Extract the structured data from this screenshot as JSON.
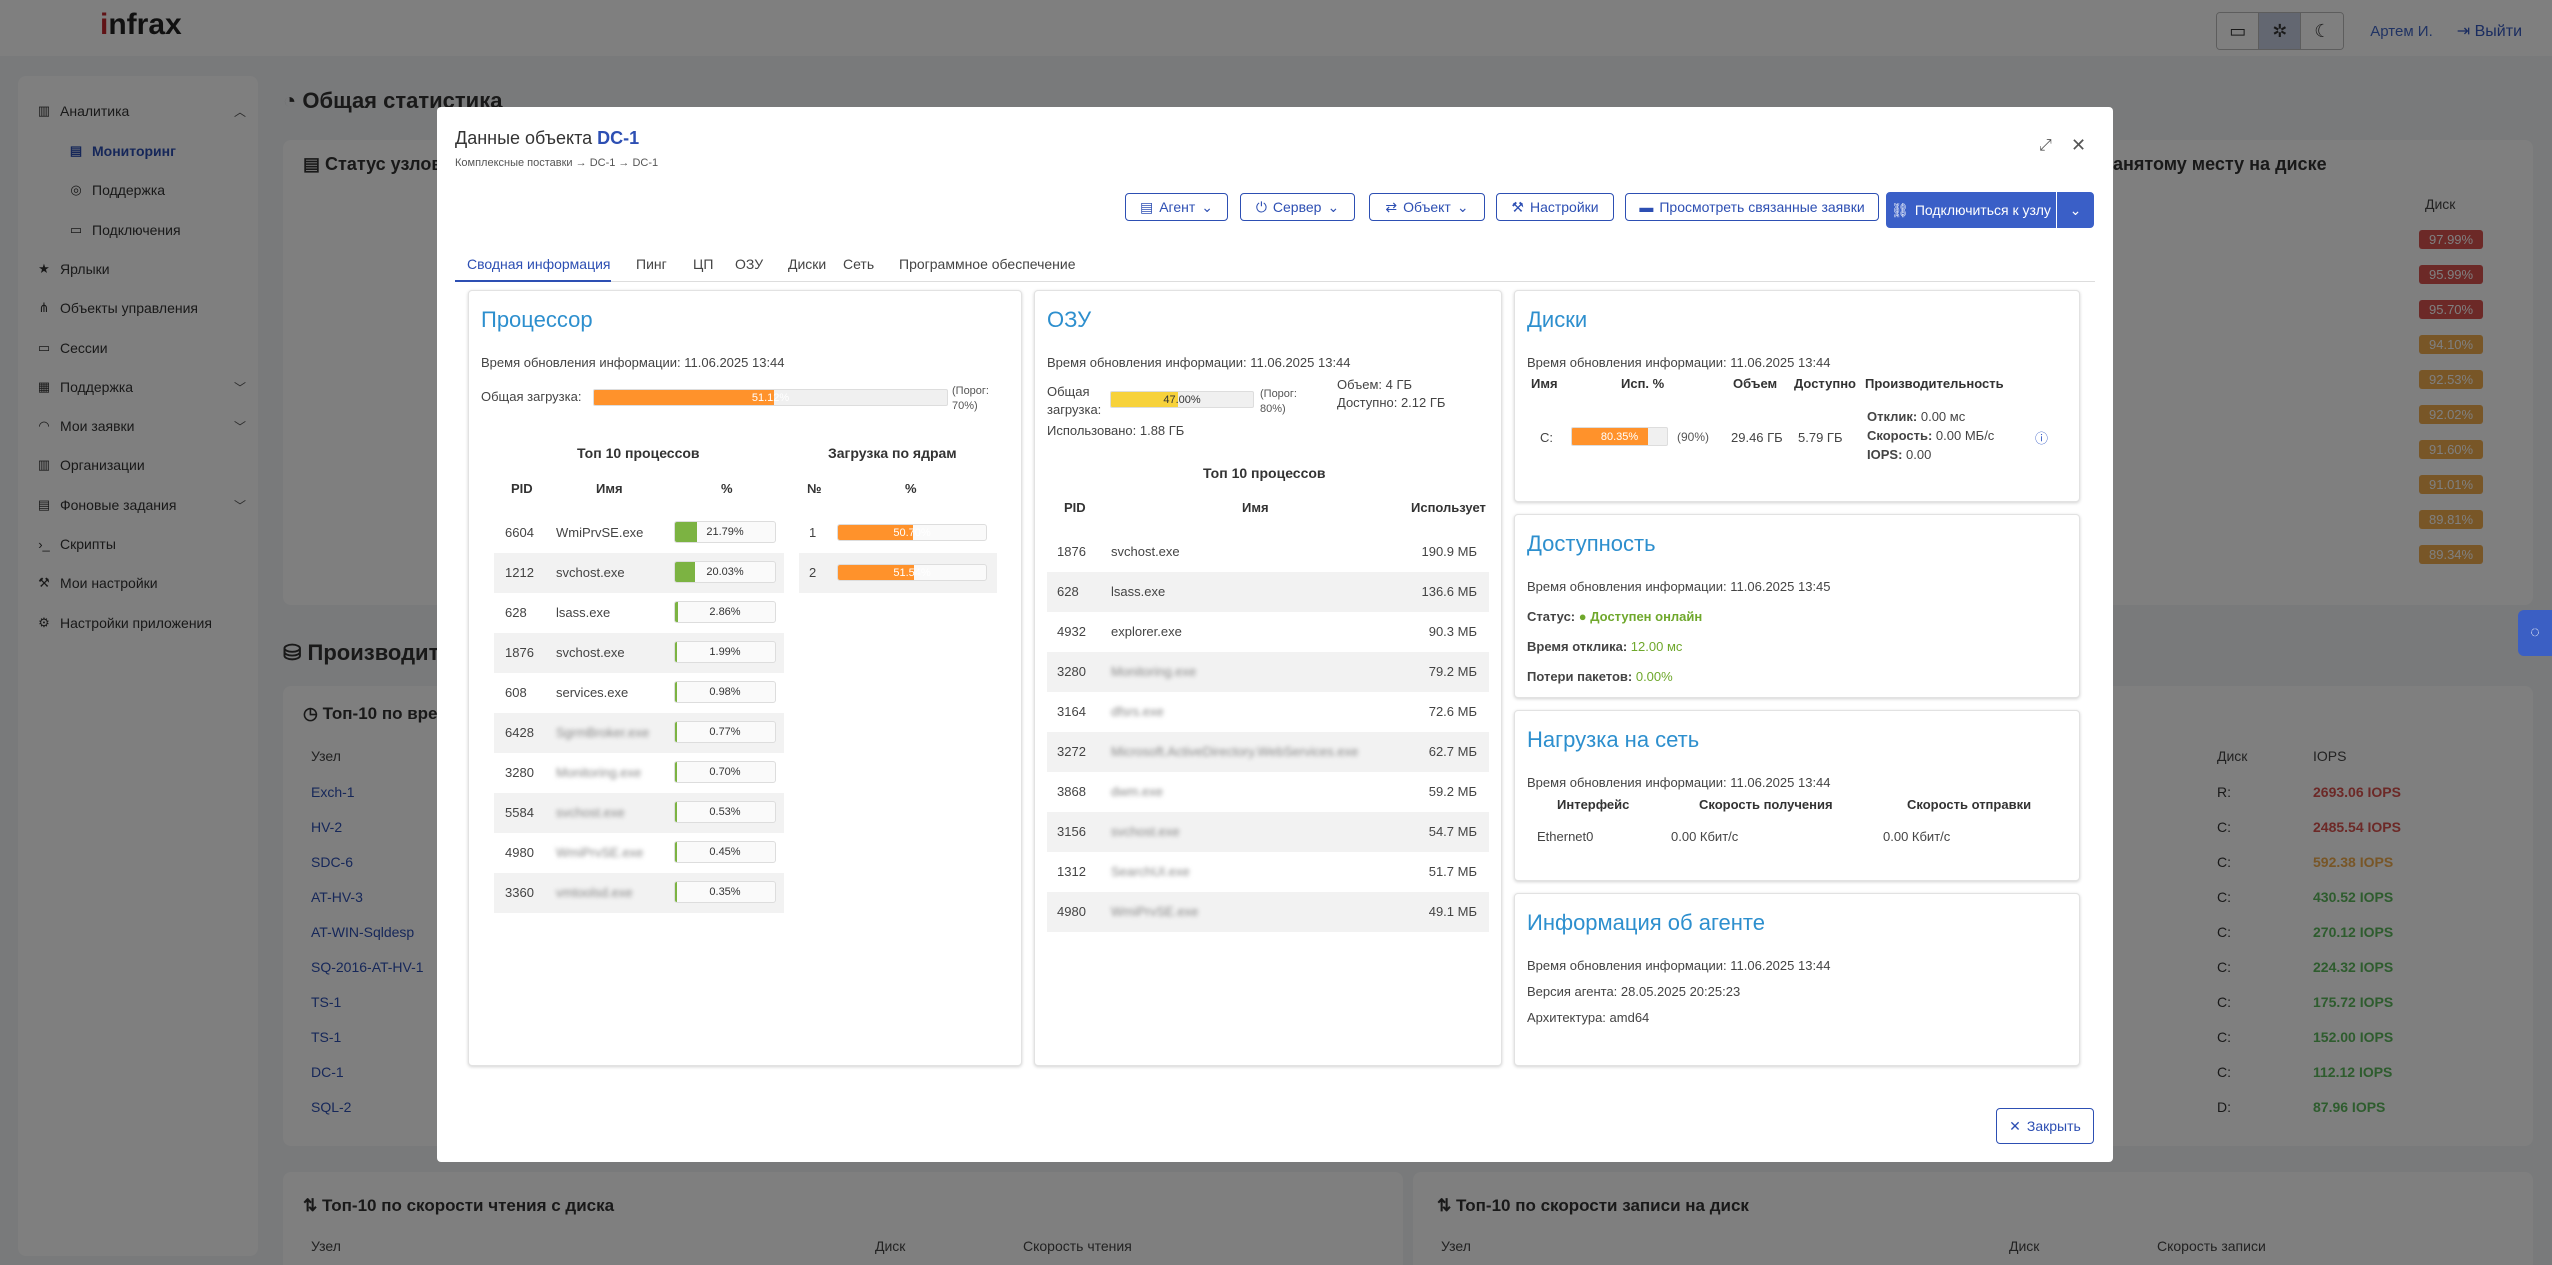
{
  "app": {
    "logo": "infrax",
    "user": "Артем И.",
    "logout": "Выйти",
    "theme_buttons": [
      "desktop-icon",
      "gear-icon",
      "moon-icon"
    ]
  },
  "sidebar": {
    "items": [
      {
        "label": "Аналитика",
        "icon": "chart-icon"
      },
      {
        "label": "Мониторинг",
        "icon": "monitor-icon"
      },
      {
        "label": "Поддержка",
        "icon": "support-icon"
      },
      {
        "label": "Подключения",
        "icon": "screen-icon"
      },
      {
        "label": "Ярлыки",
        "icon": "star-icon"
      },
      {
        "label": "Объекты управления",
        "icon": "sitemap-icon"
      },
      {
        "label": "Сессии",
        "icon": "desktop-icon"
      },
      {
        "label": "Поддержка",
        "icon": "ticket-icon"
      },
      {
        "label": "Мои заявки",
        "icon": "headset-icon"
      },
      {
        "label": "Организации",
        "icon": "building-icon"
      },
      {
        "label": "Фоновые задания",
        "icon": "tasks-icon"
      },
      {
        "label": "Скрипты",
        "icon": "terminal-icon"
      },
      {
        "label": "Мои настройки",
        "icon": "wrench-icon"
      },
      {
        "label": "Настройки приложения",
        "icon": "cogs-icon"
      }
    ]
  },
  "background": {
    "page_title": "Общая статистика",
    "status_title": "Статус узлов",
    "disk_title": "анятому месту на диске",
    "disk_col": "Диск",
    "disk_values": [
      "97.99%",
      "95.99%",
      "95.70%",
      "94.10%",
      "92.53%",
      "92.02%",
      "91.60%",
      "91.01%",
      "89.81%",
      "89.34%"
    ],
    "perf_title": "Производите",
    "top10_title": "Топ-10 по вре",
    "col_node": "Узел",
    "col_disk": "Диск",
    "col_iops": "IOPS",
    "nodes": [
      "Exch-1",
      "HV-2",
      "SDC-6",
      "AT-HV-3",
      "AT-WIN-Sqldesp",
      "SQ-2016-AT-HV-1",
      "TS-1",
      "TS-1",
      "DC-1",
      "SQL-2"
    ],
    "disks": [
      "R:",
      "C:",
      "C:",
      "C:",
      "C:",
      "C:",
      "C:",
      "C:",
      "C:",
      "D:"
    ],
    "iops": [
      "2693.06 IOPS",
      "2485.54 IOPS",
      "592.38 IOPS",
      "430.52 IOPS",
      "270.12 IOPS",
      "224.32 IOPS",
      "175.72 IOPS",
      "152.00 IOPS",
      "112.12 IOPS",
      "87.96 IOPS"
    ],
    "read_title": "Топ-10 по скорости чтения с диска",
    "write_title": "Топ-10 по скорости записи на диск",
    "read_speed_col": "Скорость чтения",
    "write_speed_col": "Скорость записи"
  },
  "modal": {
    "title_prefix": "Данные объекта",
    "object_name": "DC-1",
    "breadcrumb": "Комплексные поставки → DC-1 → DC-1",
    "toolbar": {
      "agent": "Агент",
      "server": "Сервер",
      "object": "Объект",
      "settings": "Настройки",
      "view_tickets": "Просмотреть связанные заявки",
      "connect": "Подключиться к узлу"
    },
    "tabs": [
      "Сводная информация",
      "Пинг",
      "ЦП",
      "ОЗУ",
      "Диски",
      "Сеть",
      "Программное обеспечение"
    ],
    "close_label": "Закрыть"
  },
  "cpu": {
    "title": "Процессор",
    "updated": "Время обновления информации: 11.06.2025 13:44",
    "load_label": "Общая загрузка:",
    "load_value": "51.12%",
    "load_fraction": 0.5112,
    "threshold": "(Порог: 70%)",
    "top10_title": "Топ 10 процессов",
    "cores_title": "Загрузка по ядрам",
    "col_pid": "PID",
    "col_name": "Имя",
    "col_pct": "%",
    "col_no": "№",
    "processes": [
      {
        "pid": "6604",
        "name": "WmiPrvSE.exe",
        "pct": "21.79%",
        "frac": 0.2179,
        "blur": false
      },
      {
        "pid": "1212",
        "name": "svchost.exe",
        "pct": "20.03%",
        "frac": 0.2003,
        "blur": false
      },
      {
        "pid": "628",
        "name": "lsass.exe",
        "pct": "2.86%",
        "frac": 0.0286,
        "blur": false
      },
      {
        "pid": "1876",
        "name": "svchost.exe",
        "pct": "1.99%",
        "frac": 0.0199,
        "blur": false
      },
      {
        "pid": "608",
        "name": "services.exe",
        "pct": "0.98%",
        "frac": 0.0098,
        "blur": false
      },
      {
        "pid": "6428",
        "name": "SgrmBroker.exe",
        "pct": "0.77%",
        "frac": 0.0077,
        "blur": true
      },
      {
        "pid": "3280",
        "name": "Monitoring.exe",
        "pct": "0.70%",
        "frac": 0.007,
        "blur": true
      },
      {
        "pid": "5584",
        "name": "svchost.exe",
        "pct": "0.53%",
        "frac": 0.0053,
        "blur": true
      },
      {
        "pid": "4980",
        "name": "WmiPrvSE.exe",
        "pct": "0.45%",
        "frac": 0.0045,
        "blur": true
      },
      {
        "pid": "3360",
        "name": "vmtoolsd.exe",
        "pct": "0.35%",
        "frac": 0.0035,
        "blur": true
      }
    ],
    "cores": [
      {
        "no": "1",
        "pct": "50.70%",
        "frac": 0.507
      },
      {
        "no": "2",
        "pct": "51.54%",
        "frac": 0.5154
      }
    ]
  },
  "ram": {
    "title": "ОЗУ",
    "updated": "Время обновления информации: 11.06.2025 13:44",
    "load_label": "Общая загрузка:",
    "load_value": "47.00%",
    "load_fraction": 0.47,
    "threshold": "(Порог: 80%)",
    "volume": "Объем: 4 ГБ",
    "available": "Доступно: 2.12 ГБ",
    "used": "Использовано: 1.88 ГБ",
    "top10_title": "Топ 10 процессов",
    "col_pid": "PID",
    "col_name": "Имя",
    "col_uses": "Использует",
    "processes": [
      {
        "pid": "1876",
        "name": "svchost.exe",
        "mem": "190.9 МБ",
        "blur": false
      },
      {
        "pid": "628",
        "name": "lsass.exe",
        "mem": "136.6 МБ",
        "blur": false
      },
      {
        "pid": "4932",
        "name": "explorer.exe",
        "mem": "90.3 МБ",
        "blur": false
      },
      {
        "pid": "3280",
        "name": "Monitoring.exe",
        "mem": "79.2 МБ",
        "blur": true
      },
      {
        "pid": "3164",
        "name": "dfsrs.exe",
        "mem": "72.6 МБ",
        "blur": true
      },
      {
        "pid": "3272",
        "name": "Microsoft.ActiveDirectory.WebServices.exe",
        "mem": "62.7 МБ",
        "blur": true
      },
      {
        "pid": "3868",
        "name": "dwm.exe",
        "mem": "59.2 МБ",
        "blur": true
      },
      {
        "pid": "3156",
        "name": "svchost.exe",
        "mem": "54.7 МБ",
        "blur": true
      },
      {
        "pid": "1312",
        "name": "SearchUI.exe",
        "mem": "51.7 МБ",
        "blur": true
      },
      {
        "pid": "4980",
        "name": "WmiPrvSE.exe",
        "mem": "49.1 МБ",
        "blur": true
      }
    ]
  },
  "disks": {
    "title": "Диски",
    "updated": "Время обновления информации: 11.06.2025 13:44",
    "col_name": "Имя",
    "col_use": "Исп. %",
    "col_volume": "Объем",
    "col_available": "Доступно",
    "col_perf": "Производительность",
    "rows": [
      {
        "name": "C:",
        "use": "80.35%",
        "frac": 0.8035,
        "threshold": "(90%)",
        "volume": "29.46 ГБ",
        "available": "5.79 ГБ",
        "response_label": "Отклик:",
        "response": "0.00 мс",
        "speed_label": "Скорость:",
        "speed": "0.00 МБ/с",
        "iops_label": "IOPS:",
        "iops": "0.00"
      }
    ]
  },
  "availability": {
    "title": "Доступность",
    "updated": "Время обновления информации: 11.06.2025 13:45",
    "status_label": "Статус:",
    "status_value": "Доступен онлайн",
    "response_label": "Время отклика:",
    "response_value": "12.00 мс",
    "loss_label": "Потери пакетов:",
    "loss_value": "0.00%"
  },
  "network": {
    "title": "Нагрузка на сеть",
    "updated": "Время обновления информации: 11.06.2025 13:44",
    "col_iface": "Интерфейс",
    "col_rx": "Скорость получения",
    "col_tx": "Скорость отправки",
    "rows": [
      {
        "iface": "Ethernet0",
        "rx": "0.00 Кбит/с",
        "tx": "0.00 Кбит/с"
      }
    ]
  },
  "agent": {
    "title": "Информация об агенте",
    "updated": "Время обновления информации: 11.06.2025 13:44",
    "version": "Версия агента: 28.05.2025 20:25:23",
    "arch": "Архитектура: amd64"
  },
  "colors": {
    "accent": "#2d4fb3",
    "title_blue": "#2d8fce",
    "orange": "#ff922b",
    "yellow": "#f7d23b",
    "green": "#7cb342",
    "online": "#6fa82c",
    "danger": "#d9534f"
  }
}
